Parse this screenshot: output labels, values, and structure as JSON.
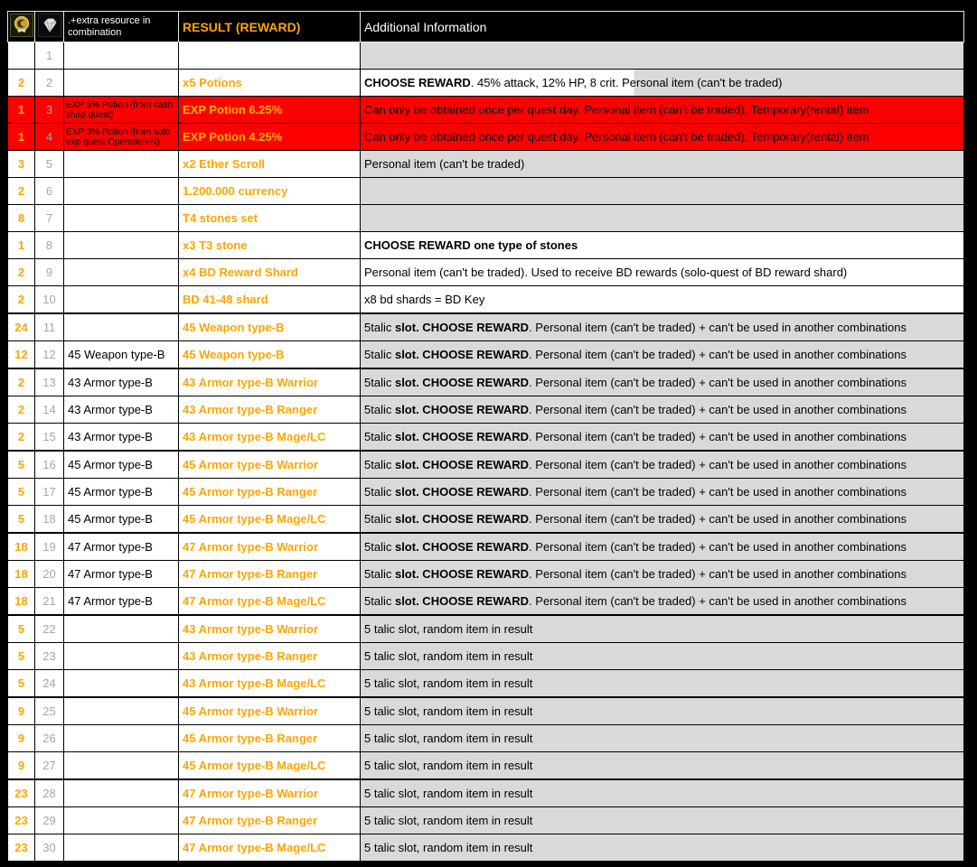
{
  "table": {
    "header": {
      "col1_icon": "gold-emblem-icon",
      "col2_icon": "diamond-gem-icon",
      "col3_label": ".+extra resource in combination",
      "col4_label": "RESULT (REWARD)",
      "col5_label": "Additional Information"
    },
    "colors": {
      "accent_orange": "#FFA500",
      "red_row_bg": "#FF0000",
      "gray_fill": "#D9D9D9",
      "row_number_gray": "#A6A6A6",
      "header_bg": "#000000",
      "page_bg": "#000000"
    },
    "rows": [
      {
        "count": "",
        "num": "1",
        "extra": "",
        "result": "",
        "info": [],
        "variant": "normal",
        "info_bg": "gray",
        "thick_top": false
      },
      {
        "count": "2",
        "num": "2",
        "extra": "",
        "result": "x5 Potions",
        "info": [
          {
            "text": "CHOOSE REWARD",
            "bold": true
          },
          {
            "text": ". 45% attack, 12% HP, 8 crit. Personal item (can't be traded)",
            "bold": false
          }
        ],
        "variant": "normal",
        "info_bg": "split",
        "thick_top": false
      },
      {
        "count": "1",
        "num": "3",
        "extra": "EXP 5% Potion (from cash shop quest)",
        "result": "EXP Potion 6.25%",
        "info": [
          {
            "text": "Can only be obtained once per quest day. Personal item (can't be traded). Temporary(rental) item",
            "bold": false
          }
        ],
        "variant": "red",
        "info_bg": "red",
        "thick_top": false
      },
      {
        "count": "1",
        "num": "4",
        "extra": "EXP 3% Potion (from solo exp quest Operation-N)",
        "result": "EXP Potion 4.25%",
        "info": [
          {
            "text": "Can only be obtained once per quest day. Personal item (can't be traded). Temporary(rental) item",
            "bold": false
          }
        ],
        "variant": "red",
        "info_bg": "red",
        "thick_top": false
      },
      {
        "count": "3",
        "num": "5",
        "extra": "",
        "result": "x2 Ether Scroll",
        "info": [
          {
            "text": "Personal item (can't be traded)",
            "bold": false
          }
        ],
        "variant": "normal",
        "info_bg": "gray",
        "thick_top": false
      },
      {
        "count": "2",
        "num": "6",
        "extra": "",
        "result": "1.200.000 currency",
        "info": [],
        "variant": "normal",
        "info_bg": "gray",
        "thick_top": false
      },
      {
        "count": "8",
        "num": "7",
        "extra": "",
        "result": "T4 stones set",
        "info": [],
        "variant": "normal",
        "info_bg": "gray",
        "thick_top": false
      },
      {
        "count": "1",
        "num": "8",
        "extra": "",
        "result": "x3 T3 stone",
        "info": [
          {
            "text": "CHOOSE REWARD one type of stones",
            "bold": true
          }
        ],
        "variant": "normal",
        "info_bg": "white",
        "thick_top": false
      },
      {
        "count": "2",
        "num": "9",
        "extra": "",
        "result": "x4 BD Reward Shard",
        "info": [
          {
            "text": "Personal item (can't be traded). Used to receive BD rewards (solo-quest of BD reward shard)",
            "bold": false
          }
        ],
        "variant": "normal",
        "info_bg": "white",
        "thick_top": false
      },
      {
        "count": "2",
        "num": "10",
        "extra": "",
        "result": "BD 41-48 shard",
        "info": [
          {
            "text": "x8 bd shards = BD Key",
            "bold": false
          }
        ],
        "variant": "normal",
        "info_bg": "white",
        "thick_top": false
      },
      {
        "count": "24",
        "num": "11",
        "extra": "",
        "result": "45 Weapon type-B",
        "info": [
          {
            "text": "5talic ",
            "bold": false
          },
          {
            "text": "slot. CHOOSE REWARD",
            "bold": true
          },
          {
            "text": ". Personal item (can't be traded) + can't be used in another combinations",
            "bold": false
          }
        ],
        "variant": "normal",
        "info_bg": "gray",
        "thick_top": true
      },
      {
        "count": "12",
        "num": "12",
        "extra": "45 Weapon type-B",
        "result": "45 Weapon type-B",
        "info": [
          {
            "text": "5talic ",
            "bold": false
          },
          {
            "text": "slot. CHOOSE REWARD",
            "bold": true
          },
          {
            "text": ". Personal item (can't be traded) + can't be used in another combinations",
            "bold": false
          }
        ],
        "variant": "normal",
        "info_bg": "gray",
        "thick_top": false
      },
      {
        "count": "2",
        "num": "13",
        "extra": "43 Armor type-B",
        "result": "43 Armor type-B Warrior",
        "info": [
          {
            "text": "5talic ",
            "bold": false
          },
          {
            "text": "slot. CHOOSE REWARD",
            "bold": true
          },
          {
            "text": ". Personal item (can't be traded) + can't be used in another combinations",
            "bold": false
          }
        ],
        "variant": "normal",
        "info_bg": "gray",
        "thick_top": true
      },
      {
        "count": "2",
        "num": "14",
        "extra": "43 Armor type-B",
        "result": "43 Armor type-B Ranger",
        "info": [
          {
            "text": "5talic ",
            "bold": false
          },
          {
            "text": "slot. CHOOSE REWARD",
            "bold": true
          },
          {
            "text": ". Personal item (can't be traded) + can't be used in another combinations",
            "bold": false
          }
        ],
        "variant": "normal",
        "info_bg": "gray",
        "thick_top": false
      },
      {
        "count": "2",
        "num": "15",
        "extra": "43 Armor type-B",
        "result": "43 Armor type-B Mage/LC",
        "info": [
          {
            "text": "5talic ",
            "bold": false
          },
          {
            "text": "slot. CHOOSE REWARD",
            "bold": true
          },
          {
            "text": ". Personal item (can't be traded) + can't be used in another combinations",
            "bold": false
          }
        ],
        "variant": "normal",
        "info_bg": "gray",
        "thick_top": false
      },
      {
        "count": "5",
        "num": "16",
        "extra": "45 Armor type-B",
        "result": "45 Armor type-B Warrior",
        "info": [
          {
            "text": "5talic ",
            "bold": false
          },
          {
            "text": "slot. CHOOSE REWARD",
            "bold": true
          },
          {
            "text": ". Personal item (can't be traded) + can't be used in another combinations",
            "bold": false
          }
        ],
        "variant": "normal",
        "info_bg": "gray",
        "thick_top": true
      },
      {
        "count": "5",
        "num": "17",
        "extra": "45 Armor type-B",
        "result": "45 Armor type-B Ranger",
        "info": [
          {
            "text": "5talic ",
            "bold": false
          },
          {
            "text": "slot. CHOOSE REWARD",
            "bold": true
          },
          {
            "text": ". Personal item (can't be traded) + can't be used in another combinations",
            "bold": false
          }
        ],
        "variant": "normal",
        "info_bg": "gray",
        "thick_top": false
      },
      {
        "count": "5",
        "num": "18",
        "extra": "45 Armor type-B",
        "result": "45 Armor type-B Mage/LC",
        "info": [
          {
            "text": "5talic ",
            "bold": false
          },
          {
            "text": "slot. CHOOSE REWARD",
            "bold": true
          },
          {
            "text": ". Personal item (can't be traded) + can't be used in another combinations",
            "bold": false
          }
        ],
        "variant": "normal",
        "info_bg": "gray",
        "thick_top": false
      },
      {
        "count": "18",
        "num": "19",
        "extra": "47 Armor type-B",
        "result": "47 Armor type-B Warrior",
        "info": [
          {
            "text": "5talic ",
            "bold": false
          },
          {
            "text": "slot. CHOOSE REWARD",
            "bold": true
          },
          {
            "text": ". Personal item (can't be traded) + can't be used in another combinations",
            "bold": false
          }
        ],
        "variant": "normal",
        "info_bg": "gray",
        "thick_top": true
      },
      {
        "count": "18",
        "num": "20",
        "extra": "47 Armor type-B",
        "result": "47 Armor type-B Ranger",
        "info": [
          {
            "text": "5talic ",
            "bold": false
          },
          {
            "text": "slot. CHOOSE REWARD",
            "bold": true
          },
          {
            "text": ". Personal item (can't be traded) + can't be used in another combinations",
            "bold": false
          }
        ],
        "variant": "normal",
        "info_bg": "gray",
        "thick_top": false
      },
      {
        "count": "18",
        "num": "21",
        "extra": "47 Armor type-B",
        "result": "47 Armor type-B Mage/LC",
        "info": [
          {
            "text": "5talic ",
            "bold": false
          },
          {
            "text": "slot. CHOOSE REWARD",
            "bold": true
          },
          {
            "text": ". Personal item (can't be traded) + can't be used in another combinations",
            "bold": false
          }
        ],
        "variant": "normal",
        "info_bg": "gray",
        "thick_top": false
      },
      {
        "count": "5",
        "num": "22",
        "extra": "",
        "result": "43 Armor type-B Warrior",
        "info": [
          {
            "text": "5 talic slot, random item in result",
            "bold": false
          }
        ],
        "variant": "normal",
        "info_bg": "gray",
        "thick_top": true
      },
      {
        "count": "5",
        "num": "23",
        "extra": "",
        "result": "43 Armor type-B Ranger",
        "info": [
          {
            "text": "5 talic slot, random item in result",
            "bold": false
          }
        ],
        "variant": "normal",
        "info_bg": "gray",
        "thick_top": false
      },
      {
        "count": "5",
        "num": "24",
        "extra": "",
        "result": "43 Armor type-B Mage/LC",
        "info": [
          {
            "text": "5 talic slot, random item in result",
            "bold": false
          }
        ],
        "variant": "normal",
        "info_bg": "gray",
        "thick_top": false
      },
      {
        "count": "9",
        "num": "25",
        "extra": "",
        "result": "45 Armor type-B Warrior",
        "info": [
          {
            "text": "5 talic slot, random item in result",
            "bold": false
          }
        ],
        "variant": "normal",
        "info_bg": "gray",
        "thick_top": true
      },
      {
        "count": "9",
        "num": "26",
        "extra": "",
        "result": "45 Armor type-B Ranger",
        "info": [
          {
            "text": "5 talic slot, random item in result",
            "bold": false
          }
        ],
        "variant": "normal",
        "info_bg": "gray",
        "thick_top": false
      },
      {
        "count": "9",
        "num": "27",
        "extra": "",
        "result": "45 Armor type-B Mage/LC",
        "info": [
          {
            "text": "5 talic slot, random item in result",
            "bold": false
          }
        ],
        "variant": "normal",
        "info_bg": "gray",
        "thick_top": false
      },
      {
        "count": "23",
        "num": "28",
        "extra": "",
        "result": "47 Armor type-B Warrior",
        "info": [
          {
            "text": "5 talic slot, random item in result",
            "bold": false
          }
        ],
        "variant": "normal",
        "info_bg": "gray",
        "thick_top": true
      },
      {
        "count": "23",
        "num": "29",
        "extra": "",
        "result": "47 Armor type-B Ranger",
        "info": [
          {
            "text": "5 talic slot, random item in result",
            "bold": false
          }
        ],
        "variant": "normal",
        "info_bg": "gray",
        "thick_top": false
      },
      {
        "count": "23",
        "num": "30",
        "extra": "",
        "result": "47 Armor type-B Mage/LC",
        "info": [
          {
            "text": "5 talic slot, random item in result",
            "bold": false
          }
        ],
        "variant": "normal",
        "info_bg": "gray",
        "thick_top": false
      }
    ]
  }
}
